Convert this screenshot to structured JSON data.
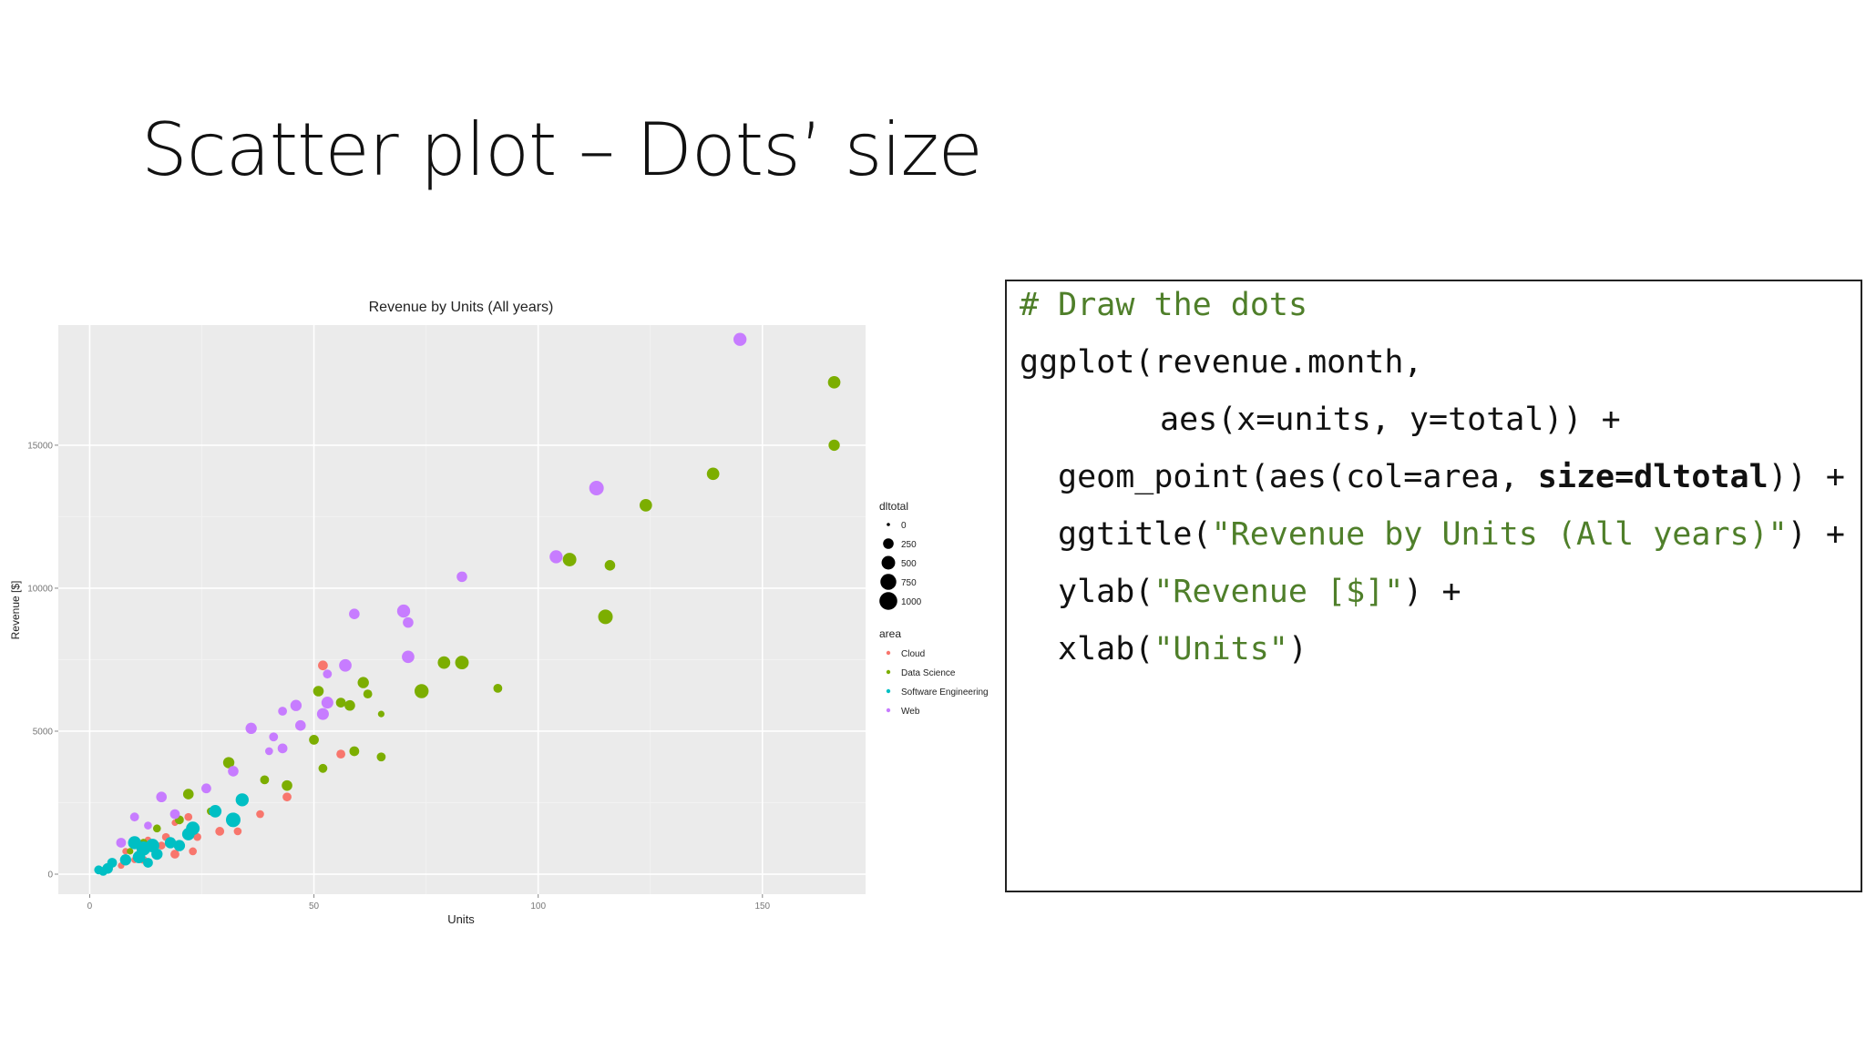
{
  "slide": {
    "title": "Scatter plot – Dots’ size"
  },
  "code": {
    "comment": "# Draw the dots",
    "line1": "ggplot(revenue.month,",
    "line2": "aes(x=units, y=total)) +",
    "line3_pre": "geom_point(aes(col=area, ",
    "line3_bold": "size=dltotal",
    "line3_post": ")) +",
    "line4_pre": "ggtitle(",
    "line4_str": "\"Revenue by Units (All years)\"",
    "line4_post": ") +",
    "line5_pre": "ylab(",
    "line5_str": "\"Revenue [$]\"",
    "line5_post": ") +",
    "line6_pre": "xlab(",
    "line6_str": "\"Units\"",
    "line6_post": ")"
  },
  "chart_data": {
    "type": "scatter",
    "title": "Revenue by Units (All years)",
    "xlabel": "Units",
    "ylabel": "Revenue [$]",
    "xlim": [
      -7,
      173
    ],
    "ylim": [
      -700,
      19200
    ],
    "xticks": [
      0,
      50,
      100,
      150
    ],
    "yticks": [
      0,
      5000,
      10000,
      15000
    ],
    "grid": true,
    "panel_background": "#ebebeb",
    "legend_position": "right",
    "size_legend": {
      "title": "dltotal",
      "items": [
        {
          "label": "0",
          "value": 0
        },
        {
          "label": "250",
          "value": 250
        },
        {
          "label": "500",
          "value": 500
        },
        {
          "label": "750",
          "value": 750
        },
        {
          "label": "1000",
          "value": 1000
        }
      ]
    },
    "color_legend": {
      "title": "area",
      "items": [
        {
          "label": "Cloud",
          "color": "#f8766d"
        },
        {
          "label": "Data Science",
          "color": "#7cae00"
        },
        {
          "label": "Software Engineering",
          "color": "#00bfc4"
        },
        {
          "label": "Web",
          "color": "#c77cff"
        }
      ]
    },
    "series": [
      {
        "name": "Cloud",
        "color": "#f8766d",
        "points": [
          {
            "x": 52,
            "y": 7300,
            "size": 200
          },
          {
            "x": 44,
            "y": 2700,
            "size": 150
          },
          {
            "x": 38,
            "y": 2100,
            "size": 100
          },
          {
            "x": 33,
            "y": 1500,
            "size": 100
          },
          {
            "x": 29,
            "y": 1500,
            "size": 150
          },
          {
            "x": 24,
            "y": 1300,
            "size": 100
          },
          {
            "x": 22,
            "y": 2000,
            "size": 100
          },
          {
            "x": 19,
            "y": 1800,
            "size": 50
          },
          {
            "x": 17,
            "y": 1300,
            "size": 100
          },
          {
            "x": 16,
            "y": 1000,
            "size": 100
          },
          {
            "x": 19,
            "y": 700,
            "size": 150
          },
          {
            "x": 23,
            "y": 800,
            "size": 100
          },
          {
            "x": 12,
            "y": 500,
            "size": 100
          },
          {
            "x": 10,
            "y": 500,
            "size": 50
          },
          {
            "x": 8,
            "y": 800,
            "size": 50
          },
          {
            "x": 56,
            "y": 4200,
            "size": 150
          },
          {
            "x": 13,
            "y": 1200,
            "size": 50
          },
          {
            "x": 7,
            "y": 300,
            "size": 50
          }
        ]
      },
      {
        "name": "Data Science",
        "color": "#7cae00",
        "points": [
          {
            "x": 166,
            "y": 17200,
            "size": 400
          },
          {
            "x": 166,
            "y": 15000,
            "size": 300
          },
          {
            "x": 139,
            "y": 14000,
            "size": 400
          },
          {
            "x": 124,
            "y": 12900,
            "size": 400
          },
          {
            "x": 107,
            "y": 11000,
            "size": 500
          },
          {
            "x": 116,
            "y": 10800,
            "size": 250
          },
          {
            "x": 115,
            "y": 9000,
            "size": 600
          },
          {
            "x": 79,
            "y": 7400,
            "size": 400
          },
          {
            "x": 83,
            "y": 7400,
            "size": 500
          },
          {
            "x": 74,
            "y": 6400,
            "size": 550
          },
          {
            "x": 91,
            "y": 6500,
            "size": 150
          },
          {
            "x": 61,
            "y": 6700,
            "size": 300
          },
          {
            "x": 62,
            "y": 6300,
            "size": 150
          },
          {
            "x": 51,
            "y": 6400,
            "size": 250
          },
          {
            "x": 56,
            "y": 6000,
            "size": 200
          },
          {
            "x": 58,
            "y": 5900,
            "size": 250
          },
          {
            "x": 65,
            "y": 5600,
            "size": 50
          },
          {
            "x": 50,
            "y": 4700,
            "size": 200
          },
          {
            "x": 59,
            "y": 4300,
            "size": 200
          },
          {
            "x": 65,
            "y": 4100,
            "size": 150
          },
          {
            "x": 52,
            "y": 3700,
            "size": 150
          },
          {
            "x": 31,
            "y": 3900,
            "size": 300
          },
          {
            "x": 44,
            "y": 3100,
            "size": 250
          },
          {
            "x": 39,
            "y": 3300,
            "size": 150
          },
          {
            "x": 22,
            "y": 2800,
            "size": 250
          },
          {
            "x": 20,
            "y": 1900,
            "size": 150
          },
          {
            "x": 27,
            "y": 2200,
            "size": 100
          },
          {
            "x": 15,
            "y": 1600,
            "size": 100
          },
          {
            "x": 12,
            "y": 1100,
            "size": 100
          },
          {
            "x": 9,
            "y": 800,
            "size": 50
          }
        ]
      },
      {
        "name": "Software Engineering",
        "color": "#00bfc4",
        "points": [
          {
            "x": 34,
            "y": 2600,
            "size": 450
          },
          {
            "x": 32,
            "y": 1900,
            "size": 600
          },
          {
            "x": 28,
            "y": 2200,
            "size": 400
          },
          {
            "x": 23,
            "y": 1600,
            "size": 500
          },
          {
            "x": 22,
            "y": 1400,
            "size": 400
          },
          {
            "x": 20,
            "y": 1000,
            "size": 300
          },
          {
            "x": 18,
            "y": 1100,
            "size": 300
          },
          {
            "x": 14,
            "y": 1000,
            "size": 500
          },
          {
            "x": 12,
            "y": 900,
            "size": 550
          },
          {
            "x": 11,
            "y": 600,
            "size": 400
          },
          {
            "x": 10,
            "y": 1100,
            "size": 450
          },
          {
            "x": 8,
            "y": 500,
            "size": 300
          },
          {
            "x": 5,
            "y": 400,
            "size": 200
          },
          {
            "x": 4,
            "y": 200,
            "size": 250
          },
          {
            "x": 3,
            "y": 100,
            "size": 150
          },
          {
            "x": 2,
            "y": 150,
            "size": 150
          },
          {
            "x": 15,
            "y": 700,
            "size": 300
          },
          {
            "x": 13,
            "y": 400,
            "size": 200
          }
        ]
      },
      {
        "name": "Web",
        "color": "#c77cff",
        "points": [
          {
            "x": 145,
            "y": 18700,
            "size": 450
          },
          {
            "x": 113,
            "y": 13500,
            "size": 600
          },
          {
            "x": 104,
            "y": 11100,
            "size": 450
          },
          {
            "x": 83,
            "y": 10400,
            "size": 250
          },
          {
            "x": 70,
            "y": 9200,
            "size": 450
          },
          {
            "x": 71,
            "y": 8800,
            "size": 250
          },
          {
            "x": 59,
            "y": 9100,
            "size": 250
          },
          {
            "x": 71,
            "y": 7600,
            "size": 400
          },
          {
            "x": 57,
            "y": 7300,
            "size": 400
          },
          {
            "x": 53,
            "y": 7000,
            "size": 150
          },
          {
            "x": 46,
            "y": 5900,
            "size": 300
          },
          {
            "x": 53,
            "y": 6000,
            "size": 350
          },
          {
            "x": 43,
            "y": 5700,
            "size": 150
          },
          {
            "x": 52,
            "y": 5600,
            "size": 350
          },
          {
            "x": 47,
            "y": 5200,
            "size": 250
          },
          {
            "x": 36,
            "y": 5100,
            "size": 300
          },
          {
            "x": 41,
            "y": 4800,
            "size": 150
          },
          {
            "x": 43,
            "y": 4400,
            "size": 200
          },
          {
            "x": 40,
            "y": 4300,
            "size": 100
          },
          {
            "x": 32,
            "y": 3600,
            "size": 250
          },
          {
            "x": 26,
            "y": 3000,
            "size": 200
          },
          {
            "x": 16,
            "y": 2700,
            "size": 250
          },
          {
            "x": 19,
            "y": 2100,
            "size": 200
          },
          {
            "x": 10,
            "y": 2000,
            "size": 150
          },
          {
            "x": 7,
            "y": 1100,
            "size": 200
          },
          {
            "x": 13,
            "y": 1700,
            "size": 100
          }
        ]
      }
    ]
  }
}
